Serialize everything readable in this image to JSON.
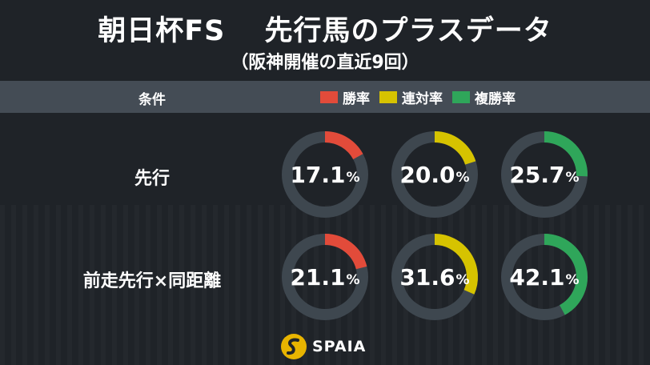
{
  "title": "朝日杯FS　 先行馬のプラスデータ",
  "subtitle": "（阪神開催の直近9回）",
  "header": {
    "condition_label": "条件",
    "legend": [
      {
        "label": "勝率",
        "color": "#e24b3a"
      },
      {
        "label": "連対率",
        "color": "#d6c300"
      },
      {
        "label": "複勝率",
        "color": "#2fa65a"
      }
    ]
  },
  "chart_data": {
    "type": "pie",
    "unit": "%",
    "track_color": "#3e474f",
    "rows": [
      {
        "label": "先行",
        "values": [
          {
            "metric": "勝率",
            "value": 17.1,
            "color": "#e24b3a"
          },
          {
            "metric": "連対率",
            "value": 20.0,
            "color": "#d6c300"
          },
          {
            "metric": "複勝率",
            "value": 25.7,
            "color": "#2fa65a"
          }
        ]
      },
      {
        "label": "前走先行×同距離",
        "values": [
          {
            "metric": "勝率",
            "value": 21.1,
            "color": "#e24b3a"
          },
          {
            "metric": "連対率",
            "value": 31.6,
            "color": "#d6c300"
          },
          {
            "metric": "複勝率",
            "value": 42.1,
            "color": "#2fa65a"
          }
        ]
      }
    ]
  },
  "logo": {
    "text": "SPAIA",
    "icon": "spaia-logo-icon"
  }
}
